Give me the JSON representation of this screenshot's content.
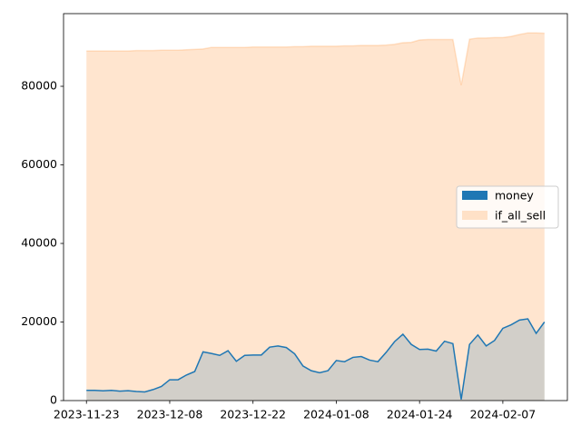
{
  "chart_data": {
    "type": "area",
    "categories": [
      "2023-11-23",
      null,
      null,
      null,
      null,
      null,
      null,
      null,
      null,
      null,
      "2023-12-08",
      null,
      null,
      null,
      null,
      null,
      null,
      null,
      null,
      null,
      "2023-12-22",
      null,
      null,
      null,
      null,
      null,
      null,
      null,
      null,
      null,
      "2024-01-08",
      null,
      null,
      null,
      null,
      null,
      null,
      null,
      null,
      null,
      "2024-01-24",
      null,
      null,
      null,
      null,
      null,
      null,
      null,
      null,
      null,
      "2024-02-07",
      null,
      null,
      null,
      null,
      null
    ],
    "series": [
      {
        "name": "money",
        "color": "#1f77b4",
        "values": [
          2600,
          2600,
          2500,
          2600,
          2400,
          2500,
          2300,
          2200,
          2800,
          3600,
          5300,
          5300,
          6500,
          7400,
          12400,
          12000,
          11500,
          12700,
          10000,
          11500,
          11600,
          11600,
          13600,
          13900,
          13500,
          11900,
          8800,
          7600,
          7100,
          7600,
          10200,
          9900,
          11000,
          11200,
          10300,
          9900,
          12300,
          15000,
          16900,
          14300,
          13000,
          13100,
          12600,
          15100,
          14500,
          300,
          14300,
          16700,
          13900,
          15300,
          18400,
          19300,
          20500,
          20800,
          17100,
          20000
        ]
      },
      {
        "name": "if_all_sell",
        "color": "#ff7f0e",
        "values": [
          89000,
          89000,
          89000,
          89000,
          89000,
          89000,
          89100,
          89100,
          89100,
          89200,
          89200,
          89200,
          89300,
          89400,
          89500,
          89900,
          89900,
          89900,
          89900,
          89900,
          90000,
          90000,
          90000,
          90000,
          90000,
          90100,
          90100,
          90200,
          90200,
          90200,
          90200,
          90300,
          90300,
          90400,
          90400,
          90400,
          90500,
          90700,
          91100,
          91200,
          91800,
          91900,
          91900,
          91900,
          91900,
          80300,
          92000,
          92300,
          92300,
          92400,
          92400,
          92700,
          93200,
          93600,
          93600,
          93500
        ]
      }
    ],
    "ylim": [
      0,
      98500
    ],
    "yticks": [
      0,
      20000,
      40000,
      60000,
      80000
    ],
    "legend": "center right"
  }
}
